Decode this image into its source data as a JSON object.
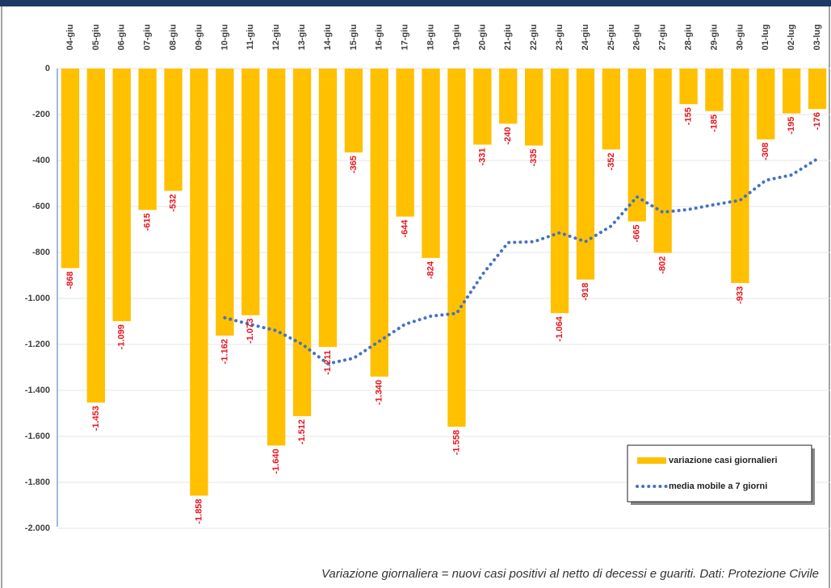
{
  "chart_data": {
    "type": "bar",
    "note": "Variazione giornaliera = nuovi casi positivi al netto di decessi e guariti. Dati: Protezione Civile",
    "categories": [
      "04-giu",
      "05-giu",
      "06-giu",
      "07-giu",
      "08-giu",
      "09-giu",
      "10-giu",
      "11-giu",
      "12-giu",
      "13-giu",
      "14-giu",
      "15-giu",
      "16-giu",
      "17-giu",
      "18-giu",
      "19-giu",
      "20-giu",
      "21-giu",
      "22-giu",
      "23-giu",
      "24-giu",
      "25-giu",
      "26-giu",
      "27-giu",
      "28-giu",
      "29-giu",
      "30-giu",
      "01-lug",
      "02-lug",
      "03-lug"
    ],
    "series": [
      {
        "name": "variazione casi giornalieri",
        "type": "bar",
        "color": "#ffc000",
        "values": [
          -868,
          -1453,
          -1099,
          -615,
          -532,
          -1858,
          -1162,
          -1073,
          -1640,
          -1512,
          -1211,
          -365,
          -1340,
          -644,
          -824,
          -1558,
          -331,
          -240,
          -335,
          -1064,
          -918,
          -352,
          -665,
          -802,
          -155,
          -185,
          -933,
          -308,
          -195,
          -176
        ],
        "value_labels": [
          "-868",
          "-1.453",
          "-1.099",
          "-615",
          "-532",
          "-1.858",
          "-1.162",
          "-1.073",
          "-1.640",
          "-1.512",
          "-1.211",
          "-365",
          "-1.340",
          "-644",
          "-824",
          "-1.558",
          "-331",
          "-240",
          "-335",
          "-1.064",
          "-918",
          "-352",
          "-665",
          "-802",
          "-155",
          "-185",
          "-933",
          "-308",
          "-195",
          "-176"
        ]
      },
      {
        "name": "media mobile a 7 giorni",
        "type": "line",
        "color": "#4472c4",
        "values": [
          null,
          null,
          null,
          null,
          null,
          null,
          -1084,
          -1113,
          -1140,
          -1199,
          -1284,
          -1260,
          -1186,
          -1112,
          -1077,
          -1065,
          -896,
          -757,
          -753,
          -714,
          -753,
          -685,
          -558,
          -625,
          -613,
          -592,
          -573,
          -486,
          -463,
          -393
        ]
      }
    ],
    "ylim": [
      -2000,
      0
    ],
    "yticks": [
      0,
      -200,
      -400,
      -600,
      -800,
      {
        "value": -1000,
        "label": "-1.000"
      },
      {
        "value": -1200,
        "label": "-1.200"
      },
      {
        "value": -1400,
        "label": "-1.400"
      },
      {
        "value": -1600,
        "label": "-1.600"
      },
      {
        "value": -1800,
        "label": "-1.800"
      },
      {
        "value": -2000,
        "label": "-2.000"
      }
    ],
    "grid": true
  }
}
